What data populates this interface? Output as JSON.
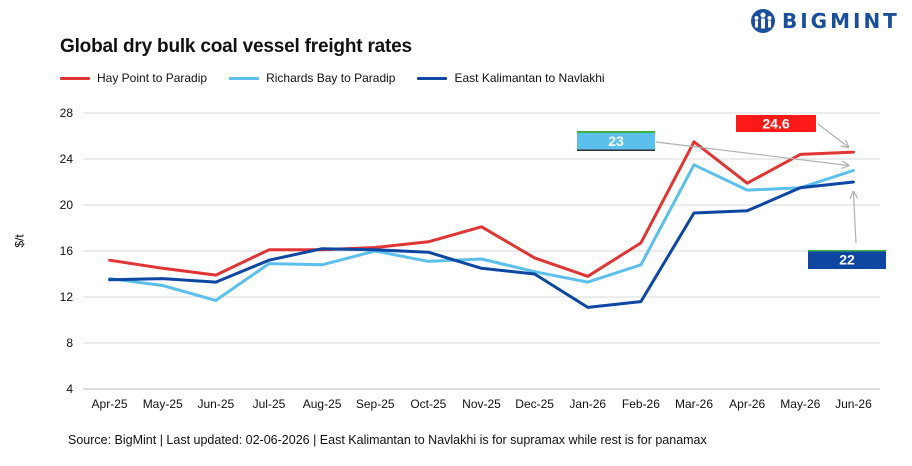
{
  "brand": {
    "name": "BIGMINT",
    "color": "#1b4f9c"
  },
  "source_note": "Source: BigMint | Last updated: 02-06-2026 | East Kalimantan to Navlakhi is for supramax while rest is for panamax",
  "chart_data": {
    "type": "line",
    "title": "Global dry bulk coal vessel freight rates",
    "xlabel": "",
    "ylabel": "$/t",
    "ylim": [
      4,
      28
    ],
    "yticks": [
      4,
      8,
      12,
      16,
      20,
      24,
      28
    ],
    "grid": "horizontal",
    "legend_position": "top-left",
    "categories": [
      "Apr-25",
      "May-25",
      "Jun-25",
      "Jul-25",
      "Aug-25",
      "Sep-25",
      "Oct-25",
      "Nov-25",
      "Dec-25",
      "Jan-26",
      "Feb-26",
      "Mar-26",
      "Apr-26",
      "May-26",
      "Jun-26"
    ],
    "series": [
      {
        "name": "Hay Point to Paradip",
        "color": "#e03535",
        "values": [
          15.2,
          14.5,
          13.9,
          16.1,
          16.1,
          16.3,
          16.8,
          18.1,
          15.4,
          13.8,
          16.7,
          25.5,
          21.9,
          24.4,
          24.6
        ]
      },
      {
        "name": "Richards Bay to Paradip",
        "color": "#5bc0eb",
        "values": [
          13.6,
          13.0,
          11.7,
          14.9,
          14.8,
          16.0,
          15.1,
          15.3,
          14.2,
          13.3,
          14.8,
          23.5,
          21.3,
          21.5,
          23.0
        ]
      },
      {
        "name": "East Kalimantan to Navlakhi",
        "color": "#0d47a1",
        "values": [
          13.5,
          13.6,
          13.3,
          15.2,
          16.2,
          16.1,
          15.9,
          14.5,
          14.0,
          11.1,
          11.6,
          19.3,
          19.5,
          21.5,
          22.0
        ]
      }
    ],
    "annotations": [
      {
        "series": "Hay Point to Paradip",
        "text": "24.6",
        "color": "#ff1a1a"
      },
      {
        "series": "Richards Bay to Paradip",
        "text": "23",
        "color": "#5bc0eb"
      },
      {
        "series": "East Kalimantan to Navlakhi",
        "text": "22",
        "color": "#0d47a1"
      }
    ]
  }
}
